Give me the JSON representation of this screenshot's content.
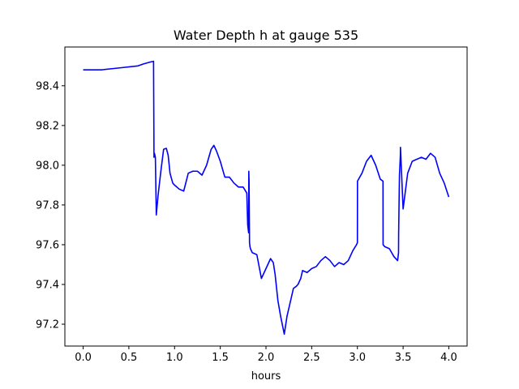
{
  "chart_data": {
    "type": "line",
    "title": "Water Depth h at gauge 535",
    "xlabel": "hours",
    "ylabel": "",
    "xlim": [
      -0.2,
      4.2
    ],
    "ylim": [
      97.09,
      98.595
    ],
    "xticks": [
      0.0,
      0.5,
      1.0,
      1.5,
      2.0,
      2.5,
      3.0,
      3.5,
      4.0
    ],
    "xtick_labels": [
      "0.0",
      "0.5",
      "1.0",
      "1.5",
      "2.0",
      "2.5",
      "3.0",
      "3.5",
      "4.0"
    ],
    "yticks": [
      97.2,
      97.4,
      97.6,
      97.8,
      98.0,
      98.2,
      98.4
    ],
    "ytick_labels": [
      "97.2",
      "97.4",
      "97.6",
      "97.8",
      "98.0",
      "98.2",
      "98.4"
    ],
    "grid": false,
    "series": [
      {
        "color": "#0000ff",
        "x": [
          0.0,
          0.2,
          0.4,
          0.6,
          0.66,
          0.7,
          0.74,
          0.77,
          0.775,
          0.78,
          0.79,
          0.8,
          0.82,
          0.85,
          0.88,
          0.91,
          0.93,
          0.95,
          0.98,
          1.0,
          1.05,
          1.1,
          1.15,
          1.2,
          1.25,
          1.3,
          1.35,
          1.4,
          1.43,
          1.46,
          1.5,
          1.55,
          1.6,
          1.65,
          1.7,
          1.75,
          1.79,
          1.8,
          1.81,
          1.812,
          1.815,
          1.82,
          1.825,
          1.83,
          1.85,
          1.9,
          1.95,
          2.0,
          2.05,
          2.08,
          2.1,
          2.13,
          2.16,
          2.2,
          2.23,
          2.26,
          2.3,
          2.33,
          2.35,
          2.38,
          2.4,
          2.45,
          2.5,
          2.55,
          2.6,
          2.65,
          2.7,
          2.75,
          2.8,
          2.85,
          2.9,
          2.95,
          2.99,
          3.0,
          3.001,
          3.05,
          3.1,
          3.15,
          3.2,
          3.25,
          3.28,
          3.281,
          3.3,
          3.35,
          3.4,
          3.44,
          3.45,
          3.451,
          3.46,
          3.47,
          3.471,
          3.5,
          3.55,
          3.6,
          3.65,
          3.7,
          3.75,
          3.8,
          3.85,
          3.9,
          3.95,
          4.0
        ],
        "y": [
          98.48,
          98.48,
          98.49,
          98.5,
          98.51,
          98.515,
          98.52,
          98.523,
          98.04,
          98.06,
          98.04,
          97.75,
          97.85,
          97.97,
          98.08,
          98.085,
          98.05,
          97.96,
          97.91,
          97.9,
          97.88,
          97.87,
          97.96,
          97.97,
          97.97,
          97.95,
          98.0,
          98.08,
          98.1,
          98.07,
          98.02,
          97.94,
          97.94,
          97.91,
          97.89,
          97.89,
          97.86,
          97.7,
          97.66,
          97.97,
          97.92,
          97.61,
          97.59,
          97.58,
          97.56,
          97.55,
          97.43,
          97.48,
          97.53,
          97.51,
          97.45,
          97.32,
          97.24,
          97.15,
          97.24,
          97.3,
          97.38,
          97.39,
          97.4,
          97.43,
          97.47,
          97.46,
          97.48,
          97.49,
          97.52,
          97.54,
          97.52,
          97.49,
          97.51,
          97.5,
          97.52,
          97.57,
          97.6,
          97.61,
          97.92,
          97.96,
          98.02,
          98.05,
          98.0,
          97.93,
          97.92,
          97.6,
          97.59,
          97.58,
          97.54,
          97.52,
          97.56,
          97.65,
          97.95,
          98.05,
          98.09,
          97.78,
          97.96,
          98.02,
          98.03,
          98.04,
          98.03,
          98.06,
          98.04,
          97.96,
          97.91,
          97.84
        ]
      }
    ]
  }
}
